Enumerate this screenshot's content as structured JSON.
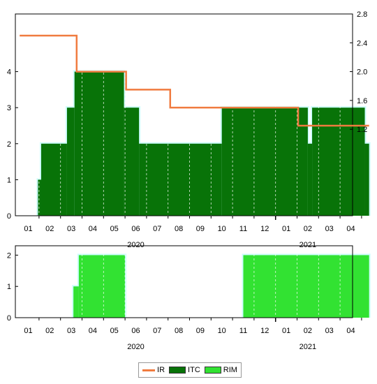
{
  "colors": {
    "ir": "#f07b3f",
    "itc": "#087308",
    "rim": "#32e232",
    "glow": "#c8fdfd",
    "axis": "#000000"
  },
  "chart_data": [
    {
      "type": "bar",
      "title": "",
      "x_months": [
        "01",
        "02",
        "03",
        "04",
        "05",
        "06",
        "07",
        "08",
        "09",
        "10",
        "11",
        "12",
        "01",
        "02",
        "03",
        "04"
      ],
      "x_years": [
        {
          "label": "2020",
          "center_month_index": 5
        },
        {
          "label": "2021",
          "center_month_index": 13
        }
      ],
      "y_left": {
        "ticks": [
          0,
          1,
          2,
          3,
          4
        ],
        "range": [
          0,
          5.6
        ]
      },
      "y_right": {
        "ticks": [
          1.2,
          1.6,
          2.0,
          2.4,
          2.8
        ],
        "range": [
          0.0,
          2.8
        ]
      },
      "series": [
        {
          "name": "ITC",
          "type": "step-bar",
          "axis": "left",
          "steps": [
            {
              "from": 0.45,
              "to": 0.6,
              "value": 1
            },
            {
              "from": 0.6,
              "to": 1.8,
              "value": 2
            },
            {
              "from": 1.8,
              "to": 2.15,
              "value": 3
            },
            {
              "from": 2.15,
              "to": 4.45,
              "value": 4
            },
            {
              "from": 4.45,
              "to": 5.15,
              "value": 3
            },
            {
              "from": 5.15,
              "to": 9.0,
              "value": 2
            },
            {
              "from": 9.0,
              "to": 13.0,
              "value": 3
            },
            {
              "from": 13.0,
              "to": 13.2,
              "value": 2
            },
            {
              "from": 13.2,
              "to": 15.65,
              "value": 3
            },
            {
              "from": 15.65,
              "to": 15.85,
              "value": 2
            }
          ]
        },
        {
          "name": "IR",
          "type": "step-line",
          "axis": "right",
          "steps": [
            {
              "from": -0.4,
              "to": 2.25,
              "value": 2.5
            },
            {
              "from": 2.25,
              "to": 4.55,
              "value": 2.0
            },
            {
              "from": 4.55,
              "to": 6.6,
              "value": 1.75
            },
            {
              "from": 6.6,
              "to": 12.55,
              "value": 1.5
            },
            {
              "from": 12.55,
              "to": 15.85,
              "value": 1.25
            }
          ]
        }
      ]
    },
    {
      "type": "bar",
      "title": "",
      "x_months": [
        "01",
        "02",
        "03",
        "04",
        "05",
        "06",
        "07",
        "08",
        "09",
        "10",
        "11",
        "12",
        "01",
        "02",
        "03",
        "04"
      ],
      "x_years": [
        {
          "label": "2020",
          "center_month_index": 5
        },
        {
          "label": "2021",
          "center_month_index": 13
        }
      ],
      "y_left": {
        "ticks": [
          0,
          1,
          2
        ],
        "range": [
          0,
          2.3
        ]
      },
      "series": [
        {
          "name": "RIM",
          "type": "step-bar",
          "axis": "left",
          "steps": [
            {
              "from": 2.1,
              "to": 2.35,
              "value": 1
            },
            {
              "from": 2.35,
              "to": 4.5,
              "value": 2
            },
            {
              "from": 10.0,
              "to": 15.85,
              "value": 2
            }
          ]
        }
      ]
    }
  ],
  "legend": {
    "items": [
      {
        "label": "IR",
        "kind": "line"
      },
      {
        "label": "ITC",
        "kind": "box"
      },
      {
        "label": "RIM",
        "kind": "box"
      }
    ]
  }
}
